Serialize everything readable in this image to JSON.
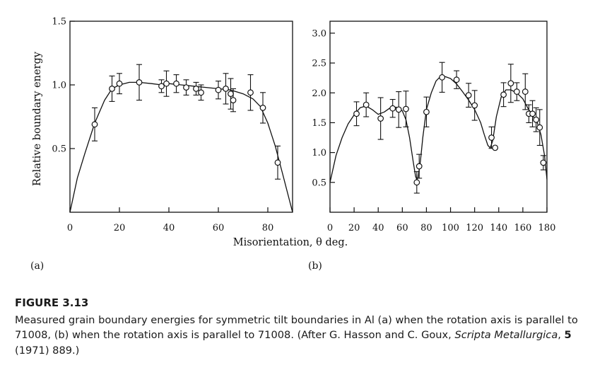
{
  "caption": {
    "figure_number": "FIGURE 3.13",
    "text_main": "Measured grain boundary energies for symmetric tilt boundaries in Al (a) when the rotation axis is parallel to 71008, (b) when the rotation axis is parallel to 71008. (After G. Hasson and C. Goux, ",
    "journal": "Scripta Metallurgica",
    "volume_prefix": ", ",
    "volume": "5",
    "text_end": " (1971) 889.)"
  },
  "chart_data": [
    {
      "type": "scatter",
      "panel_label": "(a)",
      "ylabel": "Relative boundary energy",
      "xlabel": "",
      "xlim": [
        0,
        90
      ],
      "ylim": [
        0,
        1.5
      ],
      "xticks": [
        0,
        20,
        40,
        60,
        80
      ],
      "yticks": [
        0.5,
        1.0,
        1.5
      ],
      "ytick_labels": [
        "0.5",
        "1.0",
        "1.5"
      ],
      "grid": false,
      "series": [
        {
          "markers": "open-circle",
          "error_bars": true,
          "x": [
            10,
            17,
            20,
            28,
            37,
            39,
            43,
            47,
            51,
            53,
            60,
            63,
            65,
            66,
            73,
            78,
            84
          ],
          "y": [
            0.69,
            0.97,
            1.01,
            1.02,
            0.99,
            1.01,
            1.01,
            0.98,
            0.97,
            0.94,
            0.96,
            0.97,
            0.93,
            0.88,
            0.94,
            0.82,
            0.39
          ],
          "err": [
            0.13,
            0.1,
            0.08,
            0.14,
            0.05,
            0.1,
            0.07,
            0.06,
            0.05,
            0.06,
            0.07,
            0.12,
            0.12,
            0.09,
            0.14,
            0.12,
            0.13
          ]
        }
      ],
      "curve": {
        "x": [
          0,
          3,
          6,
          10,
          14,
          17,
          20,
          24,
          28,
          33,
          37,
          40,
          45,
          50,
          55,
          60,
          65,
          70,
          74,
          77,
          80,
          83,
          86,
          88,
          90
        ],
        "y": [
          0,
          0.27,
          0.46,
          0.7,
          0.88,
          0.97,
          1.0,
          1.02,
          1.02,
          1.01,
          1.0,
          1.01,
          1.0,
          0.99,
          0.98,
          0.97,
          0.96,
          0.93,
          0.89,
          0.83,
          0.7,
          0.52,
          0.3,
          0.15,
          0
        ]
      }
    },
    {
      "type": "scatter",
      "panel_label": "(b)",
      "xlabel": "Misorientation, θ deg.",
      "ylabel": "",
      "xlim": [
        0,
        180
      ],
      "ylim": [
        0,
        3.2
      ],
      "xticks": [
        0,
        20,
        40,
        60,
        80,
        100,
        120,
        140,
        160,
        180
      ],
      "yticks": [
        0.5,
        1.0,
        1.5,
        2.0,
        2.5,
        3.0
      ],
      "ytick_labels": [
        "0.5",
        "1.0",
        "1.5",
        "2.0",
        "2.5",
        "3.0"
      ],
      "grid": false,
      "series": [
        {
          "markers": "open-circle",
          "error_bars": true,
          "x": [
            22,
            30,
            42,
            52,
            57,
            63,
            72,
            74,
            80,
            93,
            105,
            115,
            120,
            134,
            137,
            144,
            150,
            155,
            162,
            165,
            168,
            171,
            174,
            177
          ],
          "y": [
            1.65,
            1.8,
            1.57,
            1.74,
            1.72,
            1.73,
            0.5,
            0.77,
            1.68,
            2.26,
            2.22,
            1.96,
            1.79,
            1.25,
            1.08,
            1.97,
            2.16,
            2.02,
            2.02,
            1.65,
            1.65,
            1.55,
            1.42,
            0.83
          ],
          "err": [
            0.2,
            0.2,
            0.35,
            0.15,
            0.3,
            0.3,
            0.18,
            0.2,
            0.25,
            0.25,
            0.15,
            0.2,
            0.25,
            0.18,
            0,
            0.2,
            0.32,
            0.15,
            0.3,
            0.15,
            0.22,
            0.2,
            0.3,
            0.12
          ]
        }
      ],
      "curve": {
        "x": [
          0,
          5,
          10,
          15,
          20,
          25,
          30,
          35,
          40,
          45,
          50,
          55,
          60,
          63,
          66,
          69,
          71,
          72,
          73,
          75,
          77,
          80,
          84,
          88,
          92,
          96,
          100,
          105,
          110,
          115,
          120,
          125,
          128,
          131,
          133,
          135,
          138,
          142,
          146,
          150,
          155,
          160,
          164,
          168,
          172,
          175,
          178,
          180
        ],
        "y": [
          0.5,
          0.95,
          1.25,
          1.48,
          1.63,
          1.75,
          1.78,
          1.72,
          1.64,
          1.68,
          1.75,
          1.76,
          1.7,
          1.55,
          1.25,
          0.85,
          0.6,
          0.55,
          0.58,
          0.85,
          1.25,
          1.72,
          2.0,
          2.2,
          2.28,
          2.27,
          2.24,
          2.15,
          2.02,
          1.88,
          1.72,
          1.5,
          1.3,
          1.12,
          1.08,
          1.2,
          1.6,
          1.93,
          2.05,
          2.05,
          2.0,
          1.9,
          1.75,
          1.62,
          1.5,
          1.3,
          0.95,
          0.55
        ]
      }
    }
  ]
}
